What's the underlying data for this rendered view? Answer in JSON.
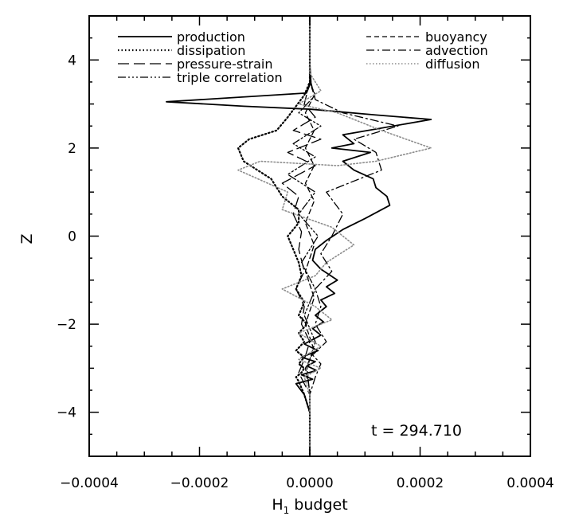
{
  "chart_data": {
    "type": "line",
    "title": "",
    "xlabel": "H",
    "xlabel_subscript": "1",
    "xlabel_suffix": " budget",
    "ylabel": "Z",
    "xlim": [
      -0.0004,
      0.0004
    ],
    "ylim": [
      -5,
      5
    ],
    "x_ticks": [
      "-0.0004",
      "-0.0002",
      "0.0000",
      "0.0002",
      "0.0004"
    ],
    "y_ticks": [
      "-4",
      "-2",
      "0",
      "2",
      "4"
    ],
    "grid": false,
    "legend_placement": "top (two columns)",
    "annotation": "t = 294.710",
    "series": [
      {
        "name": "production",
        "style": "solid",
        "color": "#000000",
        "x": [
          0,
          0,
          2e-06,
          -6e-06,
          -0.00026,
          -0.00012,
          2e-06,
          0.00012,
          0.00022,
          6e-05,
          8e-05,
          4e-05,
          0.00011,
          6e-05,
          8e-05,
          0.000115,
          0.00012,
          0.00014,
          0.000145,
          0.0001,
          6e-05,
          3e-05,
          1e-05,
          5e-06,
          2e-05,
          5e-05,
          3e-05,
          4.5e-05,
          2e-05,
          3e-05,
          1e-05,
          2.5e-05,
          5e-06,
          2e-05,
          -1e-05,
          1.5e-05,
          -1.5e-05,
          1e-05,
          -5e-06,
          1.2e-05,
          -1.5e-05,
          5e-06,
          -2.5e-05,
          -1e-05,
          0,
          0
        ],
        "y": [
          5,
          3.9,
          3.5,
          3.25,
          3.05,
          2.95,
          2.88,
          2.75,
          2.65,
          2.3,
          2.1,
          2.0,
          1.9,
          1.7,
          1.5,
          1.3,
          1.1,
          0.9,
          0.7,
          0.4,
          0.15,
          -0.1,
          -0.3,
          -0.55,
          -0.75,
          -1.0,
          -1.15,
          -1.3,
          -1.45,
          -1.6,
          -1.8,
          -1.95,
          -2.1,
          -2.25,
          -2.45,
          -2.6,
          -2.75,
          -2.85,
          -2.95,
          -3.05,
          -3.15,
          -3.25,
          -3.35,
          -3.6,
          -4.0,
          -5
        ]
      },
      {
        "name": "dissipation",
        "style": "dotted",
        "color": "#000000",
        "x": [
          0,
          0,
          -1e-05,
          -4e-05,
          -6e-05,
          -0.00011,
          -0.00013,
          -0.00012,
          -7e-05,
          -5e-05,
          -2e-05,
          -2e-05,
          -4e-05,
          -3e-05,
          -2e-05,
          -1.5e-05,
          -2.5e-05,
          -1e-05,
          -2e-05,
          -5e-06,
          -2e-05,
          -1e-05,
          -2.5e-05,
          -1e-05,
          -2e-05,
          -1e-05,
          -1.5e-05,
          -2.5e-05,
          -2e-05,
          -1e-05,
          0,
          0
        ],
        "y": [
          5,
          3.5,
          3.2,
          2.7,
          2.4,
          2.2,
          2.0,
          1.7,
          1.3,
          0.9,
          0.6,
          0.3,
          0.0,
          -0.3,
          -0.6,
          -0.9,
          -1.2,
          -1.5,
          -1.8,
          -2.0,
          -2.2,
          -2.4,
          -2.6,
          -2.75,
          -2.9,
          -3.0,
          -3.1,
          -3.2,
          -3.3,
          -3.6,
          -4.0,
          -5
        ]
      },
      {
        "name": "pressure-strain",
        "style": "longdash",
        "color": "#000000",
        "x": [
          0,
          0,
          -1e-05,
          1e-05,
          -3e-05,
          2e-05,
          -4e-05,
          1e-05,
          -5e-05,
          -2e-05,
          -3e-05,
          -1.5e-05,
          -2e-05,
          -1e-05,
          -2.5e-05,
          -1e-05,
          -1.5e-05,
          0,
          -1e-05,
          -2e-05,
          0,
          0
        ],
        "y": [
          5,
          3.5,
          3.0,
          2.7,
          2.4,
          2.2,
          1.9,
          1.6,
          1.2,
          0.9,
          0.5,
          0.1,
          -0.3,
          -0.8,
          -1.2,
          -1.6,
          -2.0,
          -2.4,
          -2.8,
          -3.1,
          -3.6,
          -5
        ]
      },
      {
        "name": "triple correlation",
        "style": "dashdotdotdot",
        "color": "#000000",
        "x": [
          0,
          0,
          1e-05,
          -2e-05,
          2e-05,
          -3e-05,
          1e-05,
          -4e-05,
          1e-05,
          -2e-05,
          1.5e-05,
          -1.5e-05,
          1e-05,
          -1e-05,
          1e-05,
          -5e-06,
          0,
          0
        ],
        "y": [
          5,
          3.5,
          3.2,
          2.8,
          2.5,
          2.1,
          1.8,
          1.4,
          1.0,
          0.5,
          0.0,
          -0.6,
          -1.2,
          -1.8,
          -2.4,
          -3.0,
          -3.6,
          -5
        ]
      },
      {
        "name": "buoyancy",
        "style": "shortdash",
        "color": "#000000",
        "x": [
          0,
          0,
          8e-06,
          -8e-06,
          8e-06,
          -8e-06,
          8e-06,
          -8e-06,
          8e-06,
          -8e-06,
          8e-06,
          -8e-06,
          8e-06,
          -8e-06,
          8e-06,
          -8e-06,
          0,
          0
        ],
        "y": [
          5,
          3.5,
          3.2,
          2.8,
          2.4,
          2.0,
          1.6,
          1.2,
          0.8,
          0.3,
          -0.2,
          -0.8,
          -1.4,
          -2.0,
          -2.6,
          -3.0,
          -3.5,
          -5
        ]
      },
      {
        "name": "advection",
        "style": "dashdot",
        "color": "#000000",
        "x": [
          0,
          0,
          1e-05,
          6e-05,
          0.00016,
          8e-05,
          0.00012,
          0.00013,
          3e-05,
          6e-05,
          4e-05,
          2e-05,
          4e-05,
          1e-05,
          2e-05,
          1e-05,
          3e-05,
          5e-06,
          2e-05,
          1e-05,
          0,
          0
        ],
        "y": [
          5,
          3.6,
          3.1,
          2.8,
          2.5,
          2.2,
          1.9,
          1.5,
          1.0,
          0.5,
          0.0,
          -0.4,
          -0.8,
          -1.2,
          -1.6,
          -2.0,
          -2.4,
          -2.7,
          -2.9,
          -3.2,
          -3.6,
          -5
        ]
      },
      {
        "name": "diffusion",
        "style": "dotted-gray",
        "color": "#8c8c8c",
        "x": [
          0,
          0,
          2e-05,
          -2e-05,
          5e-05,
          0.00013,
          0.00022,
          0.00012,
          5e-05,
          -9e-05,
          -0.00013,
          -4e-05,
          -5e-05,
          4e-05,
          8e-05,
          3e-05,
          1e-05,
          -5e-05,
          1e-05,
          4e-05,
          -2e-05,
          2e-05,
          -2e-05,
          2e-05,
          -1e-05,
          0,
          0
        ],
        "y": [
          5,
          3.7,
          3.3,
          3.0,
          2.8,
          2.4,
          2.0,
          1.7,
          1.6,
          1.7,
          1.5,
          1.0,
          0.6,
          0.2,
          -0.2,
          -0.6,
          -0.9,
          -1.2,
          -1.6,
          -1.9,
          -2.2,
          -2.5,
          -2.8,
          -3.0,
          -3.2,
          -3.6,
          -5
        ]
      }
    ]
  }
}
